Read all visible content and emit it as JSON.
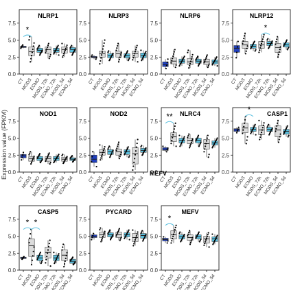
{
  "figure": {
    "ylabel": "Expression value (FPKM)",
    "stray_label": "MEFV"
  },
  "colors": {
    "ct": "#1f3fbf",
    "light": "#5bc1e0",
    "grey": "#dcdcdc",
    "box_edge": "#444444",
    "frame": "#000000",
    "dot": "#000000"
  },
  "chart_data": [
    {
      "type": "box",
      "title": "NLRP1",
      "categories": [
        "CT",
        "MODS",
        "ECMO",
        "MODS_72h",
        "ECMO_72h",
        "MODS_5d",
        "ECMO_5d"
      ],
      "yticks": [
        0.0,
        2.5,
        5.0,
        7.5
      ],
      "ylim": [
        0,
        9.5
      ],
      "boxes": [
        [
          3.8,
          3.9,
          4.0,
          4.1,
          4.3
        ],
        [
          1.8,
          2.7,
          3.3,
          4.0,
          5.5
        ],
        [
          2.8,
          3.2,
          3.5,
          3.8,
          4.2
        ],
        [
          2.3,
          3.1,
          3.6,
          4.0,
          4.5
        ],
        [
          2.8,
          3.2,
          3.5,
          3.8,
          4.2
        ],
        [
          2.5,
          3.1,
          3.6,
          4.0,
          4.5
        ],
        [
          2.8,
          3.2,
          3.6,
          3.9,
          4.2
        ]
      ],
      "sig": [
        {
          "pair": [
            0,
            1
          ],
          "label": "*"
        }
      ]
    },
    {
      "type": "box",
      "title": "NLRP3",
      "categories": [
        "CT",
        "MODS",
        "ECMO",
        "MODS_72h",
        "ECMO_72h",
        "MODS_5d",
        "ECMO_5d"
      ],
      "yticks": [
        0.0,
        2.5,
        5.0,
        7.5
      ],
      "ylim": [
        0,
        9.5
      ],
      "boxes": [
        [
          2.2,
          2.4,
          2.5,
          2.6,
          2.8
        ],
        [
          1.5,
          2.5,
          3.0,
          3.4,
          5.0
        ],
        [
          2.0,
          2.4,
          2.7,
          3.0,
          3.4
        ],
        [
          1.8,
          2.5,
          3.0,
          3.4,
          4.5
        ],
        [
          2.0,
          2.4,
          2.7,
          3.0,
          3.4
        ],
        [
          1.8,
          2.5,
          3.0,
          3.4,
          4.2
        ],
        [
          2.0,
          2.4,
          2.7,
          3.1,
          3.5
        ]
      ],
      "sig": []
    },
    {
      "type": "box",
      "title": "NLRP6",
      "categories": [
        "CT",
        "MODS",
        "ECMO",
        "MODS_72h",
        "ECMO_72h",
        "MODS_5d",
        "ECMO_5d"
      ],
      "yticks": [
        0.0,
        2.5,
        5.0,
        7.5
      ],
      "ylim": [
        0,
        9.5
      ],
      "boxes": [
        [
          0.8,
          1.1,
          1.4,
          1.8,
          2.2
        ],
        [
          1.0,
          1.5,
          1.9,
          2.4,
          3.6
        ],
        [
          1.2,
          1.6,
          1.9,
          2.2,
          2.6
        ],
        [
          0.9,
          1.4,
          1.8,
          2.3,
          3.5
        ],
        [
          1.2,
          1.6,
          1.9,
          2.2,
          2.6
        ],
        [
          1.0,
          1.4,
          1.8,
          2.2,
          2.8
        ],
        [
          1.2,
          1.5,
          1.8,
          2.1,
          2.5
        ]
      ],
      "sig": []
    },
    {
      "type": "box",
      "title": "NLRP12",
      "categories": [
        "CT",
        "MODS",
        "ECMO",
        "MODS_72h",
        "ECMO_72h",
        "MODS_5d",
        "ECMO_5d"
      ],
      "yticks": [
        0.0,
        2.5,
        5.0,
        7.5
      ],
      "ylim": [
        0,
        9.5
      ],
      "boxes": [
        [
          2.4,
          3.2,
          3.8,
          4.2,
          4.8
        ],
        [
          3.0,
          3.8,
          4.3,
          4.8,
          6.0
        ],
        [
          3.4,
          3.8,
          4.1,
          4.4,
          4.8
        ],
        [
          3.2,
          3.8,
          4.3,
          4.8,
          5.8
        ],
        [
          3.8,
          4.2,
          4.5,
          4.8,
          5.2
        ],
        [
          2.5,
          3.2,
          3.9,
          4.5,
          5.5
        ],
        [
          3.6,
          4.0,
          4.3,
          4.6,
          5.0
        ]
      ],
      "sig": [
        {
          "pair": [
            3,
            4
          ],
          "label": "*"
        }
      ]
    },
    {
      "type": "box",
      "title": "NOD1",
      "categories": [
        "CT",
        "MODS",
        "ECMO",
        "MODS_72h",
        "ECMO_72h",
        "MODS_5d",
        "ECMO_5d"
      ],
      "yticks": [
        0.0,
        2.5,
        5.0,
        7.5
      ],
      "ylim": [
        0,
        9.5
      ],
      "boxes": [
        [
          1.8,
          2.1,
          2.4,
          2.6,
          2.9
        ],
        [
          1.2,
          1.6,
          2.0,
          2.3,
          3.0
        ],
        [
          1.4,
          1.7,
          2.0,
          2.3,
          2.7
        ],
        [
          1.2,
          1.6,
          2.0,
          2.3,
          2.8
        ],
        [
          1.4,
          1.7,
          2.0,
          2.3,
          2.6
        ],
        [
          1.3,
          1.6,
          1.9,
          2.2,
          2.6
        ],
        [
          1.5,
          1.7,
          1.9,
          2.1,
          2.4
        ]
      ],
      "sig": []
    },
    {
      "type": "box",
      "title": "NOD2",
      "categories": [
        "CT",
        "MODS",
        "ECMO",
        "MODS_72h",
        "ECMO_72h",
        "MODS_5d",
        "ECMO_5d"
      ],
      "yticks": [
        0.0,
        2.5,
        5.0,
        7.5
      ],
      "ylim": [
        0,
        9.5
      ],
      "boxes": [
        [
          0.8,
          1.4,
          1.9,
          2.5,
          3.0
        ],
        [
          1.8,
          2.5,
          2.9,
          3.3,
          4.0
        ],
        [
          2.2,
          2.6,
          3.0,
          3.3,
          3.8
        ],
        [
          2.0,
          2.5,
          3.0,
          3.4,
          4.4
        ],
        [
          2.2,
          2.6,
          3.0,
          3.3,
          3.7
        ],
        [
          0.3,
          1.2,
          2.7,
          3.6,
          4.8
        ],
        [
          2.5,
          2.9,
          3.2,
          3.5,
          3.9
        ]
      ],
      "sig": []
    },
    {
      "type": "box",
      "title": "NLRC4",
      "categories": [
        "CT",
        "MODS",
        "ECMO",
        "MODS_72h",
        "ECMO_72h",
        "MODS_5d",
        "ECMO_5d"
      ],
      "yticks": [
        0.0,
        2.5,
        5.0,
        7.5
      ],
      "ylim": [
        0,
        9.5
      ],
      "boxes": [
        [
          3.0,
          3.2,
          3.4,
          3.6,
          3.8
        ],
        [
          3.8,
          4.5,
          5.2,
          5.8,
          7.2
        ],
        [
          3.8,
          4.3,
          4.7,
          5.0,
          5.4
        ],
        [
          3.6,
          4.2,
          4.7,
          5.0,
          5.6
        ],
        [
          3.8,
          4.3,
          4.7,
          5.0,
          5.4
        ],
        [
          2.2,
          3.4,
          4.2,
          4.8,
          5.4
        ],
        [
          3.6,
          4.0,
          4.3,
          4.6,
          5.0
        ]
      ],
      "sig": [
        {
          "pair": [
            0,
            1
          ],
          "label": "**"
        }
      ]
    },
    {
      "type": "box",
      "title": "CASP1",
      "categories": [
        "CT",
        "MODS",
        "ECMO",
        "MODS_72h",
        "ECMO_72h",
        "MODS_5d",
        "ECMO_5d"
      ],
      "yticks": [
        0.0,
        2.5,
        5.0,
        7.5
      ],
      "ylim": [
        0,
        9.5
      ],
      "boxes": [
        [
          5.8,
          6.0,
          6.2,
          6.4,
          6.6
        ],
        [
          4.2,
          5.8,
          6.5,
          7.2,
          8.2
        ],
        [
          5.5,
          6.0,
          6.3,
          6.6,
          7.0
        ],
        [
          4.8,
          5.5,
          6.2,
          6.8,
          7.6
        ],
        [
          5.5,
          6.0,
          6.3,
          6.6,
          7.0
        ],
        [
          4.4,
          5.2,
          6.2,
          6.8,
          7.6
        ],
        [
          5.2,
          5.6,
          6.0,
          6.3,
          6.8
        ]
      ],
      "sig": [
        {
          "pair": [
            1,
            2
          ],
          "label": "*"
        }
      ]
    },
    {
      "type": "box",
      "title": "CASP5",
      "categories": [
        "CT",
        "MODS",
        "ECMO",
        "MODS_72h",
        "ECMO_72h",
        "MODS_5d",
        "ECMO_5d"
      ],
      "yticks": [
        0.0,
        2.5,
        5.0,
        7.5
      ],
      "ylim": [
        0,
        9.5
      ],
      "boxes": [
        [
          1.6,
          1.7,
          1.8,
          1.9,
          2.0
        ],
        [
          0.8,
          2.0,
          3.6,
          4.6,
          6.0
        ],
        [
          1.0,
          1.4,
          1.8,
          2.2,
          2.6
        ],
        [
          0.6,
          1.8,
          2.6,
          3.4,
          4.4
        ],
        [
          1.0,
          1.4,
          1.8,
          2.2,
          2.6
        ],
        [
          0.5,
          1.4,
          2.2,
          3.0,
          3.8
        ],
        [
          0.8,
          1.0,
          1.3,
          1.6,
          1.9
        ]
      ],
      "sig": [
        {
          "pair": [
            0,
            1
          ],
          "label": "*"
        },
        {
          "pair": [
            1,
            2
          ],
          "label": "*"
        }
      ]
    },
    {
      "type": "box",
      "title": "PYCARD",
      "categories": [
        "CT",
        "MODS",
        "ECMO",
        "MODS_72h",
        "ECMO_72h",
        "MODS_5d",
        "ECMO_5d"
      ],
      "yticks": [
        0.0,
        2.5,
        5.0,
        7.5
      ],
      "ylim": [
        0,
        9.5
      ],
      "boxes": [
        [
          4.5,
          4.8,
          5.0,
          5.2,
          5.4
        ],
        [
          4.2,
          4.8,
          5.2,
          5.6,
          6.2
        ],
        [
          4.5,
          4.9,
          5.2,
          5.5,
          5.9
        ],
        [
          4.4,
          4.8,
          5.2,
          5.6,
          6.1
        ],
        [
          4.5,
          4.9,
          5.2,
          5.5,
          5.9
        ],
        [
          3.6,
          4.2,
          4.8,
          5.4,
          5.9
        ],
        [
          4.3,
          4.7,
          5.1,
          5.4,
          5.8
        ]
      ],
      "sig": []
    },
    {
      "type": "box",
      "title": "MEFV",
      "categories": [
        "CT",
        "MODS",
        "ECMO",
        "MODS_72h",
        "ECMO_72h",
        "MODS_5d",
        "ECMO_5d"
      ],
      "yticks": [
        0.0,
        2.5,
        5.0,
        7.5
      ],
      "ylim": [
        0,
        9.5
      ],
      "boxes": [
        [
          4.0,
          4.3,
          4.5,
          4.7,
          4.9
        ],
        [
          4.0,
          4.6,
          5.2,
          5.8,
          6.6
        ],
        [
          4.2,
          4.6,
          4.9,
          5.2,
          5.6
        ],
        [
          3.8,
          4.4,
          4.8,
          5.2,
          5.8
        ],
        [
          4.2,
          4.6,
          4.9,
          5.2,
          5.6
        ],
        [
          3.4,
          4.0,
          4.6,
          5.0,
          5.5
        ],
        [
          3.8,
          4.2,
          4.6,
          4.9,
          5.3
        ]
      ],
      "sig": [
        {
          "pair": [
            0,
            1
          ],
          "label": "*"
        }
      ]
    }
  ]
}
